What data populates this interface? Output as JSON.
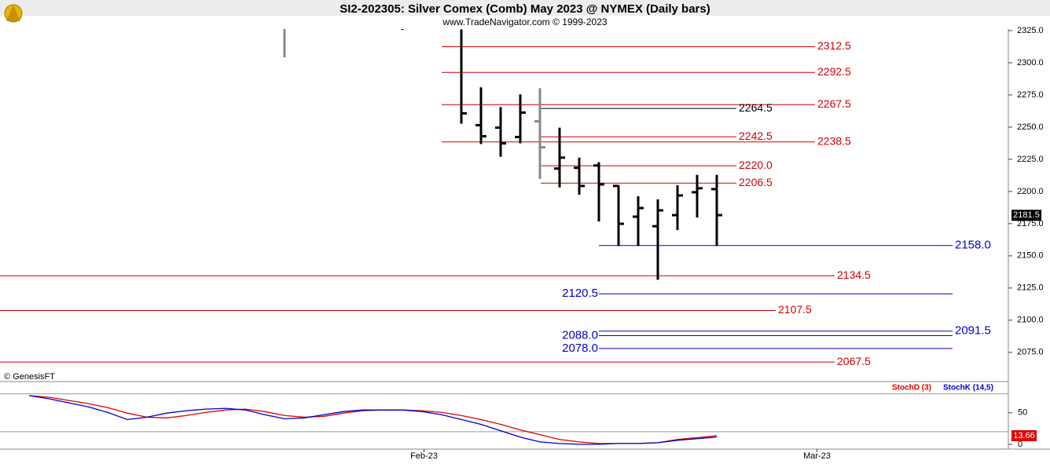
{
  "header": {
    "title": "SI2-202305:  Silver Comex (Comb) May 2023 @ NYMEX  (Daily bars)",
    "subtitle": "www.TradeNavigator.com © 1999-2023",
    "watermark": "© GenesisFT"
  },
  "chart_data": [
    {
      "type": "ohlc",
      "categories": [
        null,
        null,
        null,
        null,
        null,
        null,
        null,
        null,
        null,
        null,
        null,
        null,
        null,
        null,
        null,
        null,
        null,
        null,
        null,
        null,
        null,
        null,
        null,
        null,
        null,
        null,
        null,
        null,
        null,
        null,
        null,
        null,
        null,
        null,
        null,
        null
      ],
      "open": [
        null,
        null,
        null,
        null,
        null,
        null,
        null,
        null,
        null,
        null,
        null,
        null,
        null,
        null,
        null,
        null,
        null,
        null,
        null,
        null,
        null,
        null,
        null,
        2251.5,
        2249.6,
        2242.3,
        2254.5,
        2217.8,
        2218.4,
        2220.2,
        2204.3,
        2180.4,
        2173,
        2181.6,
        2199.4,
        2201.8
      ],
      "high": [
        null,
        null,
        null,
        null,
        null,
        null,
        null,
        null,
        null,
        null,
        null,
        null,
        null,
        null,
        null,
        null,
        null,
        null,
        null,
        null,
        null,
        null,
        2326,
        2280.9,
        2265.6,
        2275.4,
        2280.3,
        2249.6,
        2226.3,
        2222.7,
        2204.9,
        2196.3,
        2193.9,
        2204.9,
        2212.9,
        2212.9
      ],
      "low": [
        null,
        null,
        null,
        null,
        null,
        null,
        null,
        null,
        null,
        null,
        null,
        null,
        null,
        2304.2,
        null,
        null,
        null,
        null,
        null,
        2325.5,
        null,
        null,
        2252.7,
        2236.8,
        2227,
        2237.4,
        2209.8,
        2203.1,
        2197.5,
        2176.7,
        2157.7,
        2157.7,
        2131.4,
        2170,
        2179.8,
        2157.7
      ],
      "close": [
        null,
        null,
        null,
        null,
        null,
        null,
        null,
        null,
        null,
        null,
        null,
        null,
        null,
        null,
        null,
        null,
        null,
        null,
        null,
        null,
        null,
        null,
        2260.7,
        2242.9,
        2237.4,
        2261.3,
        2234.3,
        2226.3,
        2204.3,
        2205.5,
        2174.9,
        2187.1,
        2185.3,
        2196.9,
        2202.5,
        2181.6
      ],
      "colors": [
        null,
        null,
        null,
        null,
        null,
        null,
        null,
        null,
        null,
        null,
        null,
        null,
        null,
        "#888888",
        null,
        null,
        null,
        null,
        null,
        "#000000",
        null,
        null,
        "#000000",
        "#000000",
        "#000000",
        "#000000",
        "#888888",
        "#000000",
        "#000000",
        "#000000",
        "#000000",
        "#000000",
        "#000000",
        "#000000",
        "#000000",
        "#000000"
      ],
      "xlim": [
        -1.48,
        49.84
      ],
      "xticks": [
        {
          "value": 20.1,
          "label": "Feb-23"
        },
        {
          "value": 40.1,
          "label": "Mar-23"
        }
      ],
      "ylim": [
        2052.3,
        2326.2
      ],
      "yticks": [
        {
          "value": 2075,
          "label": "2075.0"
        },
        {
          "value": 2100,
          "label": "2100.0"
        },
        {
          "value": 2125,
          "label": "2125.0"
        },
        {
          "value": 2150,
          "label": "2150.0"
        },
        {
          "value": 2175,
          "label": "2175.0"
        },
        {
          "value": 2200,
          "label": "2200.0"
        },
        {
          "value": 2225,
          "label": "2225.0"
        },
        {
          "value": 2250,
          "label": "2250.0"
        },
        {
          "value": 2275,
          "label": "2275.0"
        },
        {
          "value": 2300,
          "label": "2300.0"
        },
        {
          "value": 2325,
          "label": "2325.0"
        }
      ],
      "last_price": 2181.5,
      "levels": {
        "values": [
          2312.5,
          2292.5,
          2267.5,
          2264.5,
          2242.5,
          2238.5,
          2220,
          2206.5,
          2158,
          2134.5,
          2120.5,
          2107.5,
          2091.5,
          2088,
          2078,
          2067.5
        ],
        "value_labels": [
          "2312.5",
          "2292.5",
          "2267.5",
          "2264.5",
          "2242.5",
          "2238.5",
          "2220.0",
          "2206.5",
          "2158.0",
          "2134.5",
          "2120.5",
          "2107.5",
          "2091.5",
          "2088.0",
          "2078.0",
          "2067.5"
        ],
        "colors": [
          "#d00000",
          "#d00000",
          "#d00000",
          "#000000",
          "#d00000",
          "#d00000",
          "#d00000",
          "#d00000",
          "#0000cc",
          "#d00000",
          "#0000cc",
          "#d00000",
          "#0000cc",
          "#0000cc",
          "#0000cc",
          "#d00000"
        ]
      }
    },
    {
      "type": "line",
      "series": [
        {
          "name": "StochD (3)",
          "color": "#e00000",
          "values": [
            77.2,
            74.7,
            69.6,
            64.6,
            58.2,
            49.4,
            43.0,
            41.8,
            45.6,
            50.6,
            54.4,
            55.7,
            51.9,
            45.6,
            43.0,
            44.3,
            49.4,
            53.2,
            54.4,
            54.4,
            53.2,
            50.6,
            45.6,
            39.2,
            31.6,
            22.8,
            15.2,
            7.6,
            3.8,
            1.3,
            1.3,
            1.3,
            2.5,
            7.6,
            10.5,
            13.66
          ]
        },
        {
          "name": "StochK (14,5)",
          "color": "#0000cc",
          "values": [
            77.2,
            72.2,
            65.8,
            59.5,
            50.6,
            39.2,
            43.0,
            49.4,
            53.2,
            55.7,
            57.0,
            54.4,
            46.8,
            40.5,
            41.8,
            46.8,
            51.9,
            54.4,
            54.4,
            54.4,
            51.9,
            46.8,
            39.2,
            31.6,
            21.5,
            11.4,
            3.8,
            1.3,
            0,
            0,
            1.3,
            1.3,
            2.5,
            6.3,
            8.9,
            11.4
          ]
        }
      ],
      "ylim": [
        -7.6,
        82
      ],
      "yticks": [
        0,
        50
      ],
      "hlines": [
        20,
        80
      ]
    }
  ]
}
